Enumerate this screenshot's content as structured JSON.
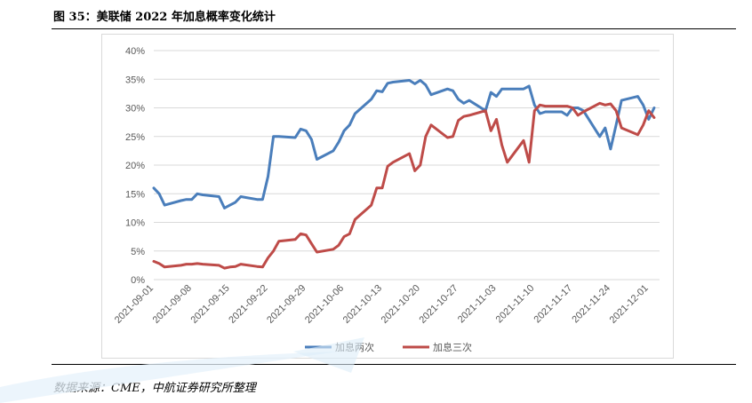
{
  "figure": {
    "title": "图 35：美联储 2022 年加息概率变化统计",
    "source": "数据来源：CME，中航证券研究所整理"
  },
  "colors": {
    "series1": "#4a7ebb",
    "series2": "#be4b48",
    "grid": "#d9d9d9",
    "axis_text": "#595959"
  },
  "chart_data": {
    "type": "line",
    "title": "",
    "xlabel": "",
    "ylabel": "",
    "ylim": [
      0,
      40
    ],
    "y_ticks": [
      "0%",
      "5%",
      "10%",
      "15%",
      "20%",
      "25%",
      "30%",
      "35%",
      "40%"
    ],
    "x_tick_labels": [
      "2021-09-01",
      "2021-09-08",
      "2021-09-15",
      "2021-09-22",
      "2021-09-29",
      "2021-10-06",
      "2021-10-13",
      "2021-10-20",
      "2021-10-27",
      "2021-11-03",
      "2021-11-10",
      "2021-11-17",
      "2021-11-24",
      "2021-12-01"
    ],
    "x_start": "2021-09-01",
    "x_end": "2021-12-03",
    "legend_position": "bottom",
    "grid": true,
    "series": [
      {
        "name": "加息两次",
        "points": [
          [
            "2021-09-01",
            16.0
          ],
          [
            "2021-09-02",
            15.0
          ],
          [
            "2021-09-03",
            13.0
          ],
          [
            "2021-09-06",
            13.8
          ],
          [
            "2021-09-07",
            14.0
          ],
          [
            "2021-09-08",
            14.0
          ],
          [
            "2021-09-09",
            15.0
          ],
          [
            "2021-09-10",
            14.8
          ],
          [
            "2021-09-13",
            14.5
          ],
          [
            "2021-09-14",
            12.5
          ],
          [
            "2021-09-15",
            13.0
          ],
          [
            "2021-09-16",
            13.5
          ],
          [
            "2021-09-17",
            14.5
          ],
          [
            "2021-09-20",
            14.0
          ],
          [
            "2021-09-21",
            14.0
          ],
          [
            "2021-09-22",
            18.0
          ],
          [
            "2021-09-23",
            25.0
          ],
          [
            "2021-09-24",
            25.0
          ],
          [
            "2021-09-27",
            24.8
          ],
          [
            "2021-09-28",
            26.3
          ],
          [
            "2021-09-29",
            26.0
          ],
          [
            "2021-09-30",
            24.5
          ],
          [
            "2021-10-01",
            21.0
          ],
          [
            "2021-10-04",
            22.5
          ],
          [
            "2021-10-05",
            24.0
          ],
          [
            "2021-10-06",
            26.0
          ],
          [
            "2021-10-07",
            27.0
          ],
          [
            "2021-10-08",
            29.0
          ],
          [
            "2021-10-11",
            31.5
          ],
          [
            "2021-10-12",
            33.0
          ],
          [
            "2021-10-13",
            32.8
          ],
          [
            "2021-10-14",
            34.3
          ],
          [
            "2021-10-15",
            34.5
          ],
          [
            "2021-10-18",
            34.8
          ],
          [
            "2021-10-19",
            34.2
          ],
          [
            "2021-10-20",
            34.8
          ],
          [
            "2021-10-21",
            34.0
          ],
          [
            "2021-10-22",
            32.3
          ],
          [
            "2021-10-25",
            33.3
          ],
          [
            "2021-10-26",
            33.0
          ],
          [
            "2021-10-27",
            31.5
          ],
          [
            "2021-10-28",
            30.8
          ],
          [
            "2021-10-29",
            31.3
          ],
          [
            "2021-11-01",
            29.5
          ],
          [
            "2021-11-02",
            32.7
          ],
          [
            "2021-11-03",
            32.0
          ],
          [
            "2021-11-04",
            33.3
          ],
          [
            "2021-11-05",
            33.3
          ],
          [
            "2021-11-08",
            33.3
          ],
          [
            "2021-11-09",
            33.8
          ],
          [
            "2021-11-10",
            30.5
          ],
          [
            "2021-11-11",
            29.0
          ],
          [
            "2021-11-12",
            29.3
          ],
          [
            "2021-11-15",
            29.3
          ],
          [
            "2021-11-16",
            28.7
          ],
          [
            "2021-11-17",
            30.0
          ],
          [
            "2021-11-18",
            30.0
          ],
          [
            "2021-11-19",
            29.5
          ],
          [
            "2021-11-22",
            25.0
          ],
          [
            "2021-11-23",
            26.5
          ],
          [
            "2021-11-24",
            22.8
          ],
          [
            "2021-11-25",
            27.0
          ],
          [
            "2021-11-26",
            31.3
          ],
          [
            "2021-11-29",
            32.0
          ],
          [
            "2021-11-30",
            30.5
          ],
          [
            "2021-12-01",
            28.0
          ],
          [
            "2021-12-02",
            30.0
          ]
        ]
      },
      {
        "name": "加息三次",
        "points": [
          [
            "2021-09-01",
            3.2
          ],
          [
            "2021-09-02",
            2.8
          ],
          [
            "2021-09-03",
            2.2
          ],
          [
            "2021-09-06",
            2.5
          ],
          [
            "2021-09-07",
            2.7
          ],
          [
            "2021-09-08",
            2.7
          ],
          [
            "2021-09-09",
            2.8
          ],
          [
            "2021-09-10",
            2.7
          ],
          [
            "2021-09-13",
            2.5
          ],
          [
            "2021-09-14",
            2.0
          ],
          [
            "2021-09-15",
            2.2
          ],
          [
            "2021-09-16",
            2.3
          ],
          [
            "2021-09-17",
            2.7
          ],
          [
            "2021-09-20",
            2.3
          ],
          [
            "2021-09-21",
            2.2
          ],
          [
            "2021-09-22",
            3.8
          ],
          [
            "2021-09-23",
            5.0
          ],
          [
            "2021-09-24",
            6.7
          ],
          [
            "2021-09-27",
            7.0
          ],
          [
            "2021-09-28",
            8.0
          ],
          [
            "2021-09-29",
            7.8
          ],
          [
            "2021-09-30",
            6.3
          ],
          [
            "2021-10-01",
            4.8
          ],
          [
            "2021-10-04",
            5.3
          ],
          [
            "2021-10-05",
            6.0
          ],
          [
            "2021-10-06",
            7.5
          ],
          [
            "2021-10-07",
            8.0
          ],
          [
            "2021-10-08",
            10.5
          ],
          [
            "2021-10-11",
            13.0
          ],
          [
            "2021-10-12",
            16.0
          ],
          [
            "2021-10-13",
            16.0
          ],
          [
            "2021-10-14",
            19.8
          ],
          [
            "2021-10-15",
            20.5
          ],
          [
            "2021-10-18",
            22.0
          ],
          [
            "2021-10-19",
            19.0
          ],
          [
            "2021-10-20",
            20.0
          ],
          [
            "2021-10-21",
            25.0
          ],
          [
            "2021-10-22",
            27.0
          ],
          [
            "2021-10-25",
            24.8
          ],
          [
            "2021-10-26",
            25.0
          ],
          [
            "2021-10-27",
            27.8
          ],
          [
            "2021-10-28",
            28.5
          ],
          [
            "2021-10-29",
            28.7
          ],
          [
            "2021-11-01",
            29.5
          ],
          [
            "2021-11-02",
            26.0
          ],
          [
            "2021-11-03",
            28.0
          ],
          [
            "2021-11-04",
            23.5
          ],
          [
            "2021-11-05",
            20.5
          ],
          [
            "2021-11-08",
            24.3
          ],
          [
            "2021-11-09",
            20.5
          ],
          [
            "2021-11-10",
            29.5
          ],
          [
            "2021-11-11",
            30.5
          ],
          [
            "2021-11-12",
            30.3
          ],
          [
            "2021-11-15",
            30.3
          ],
          [
            "2021-11-16",
            30.3
          ],
          [
            "2021-11-17",
            30.0
          ],
          [
            "2021-11-18",
            28.7
          ],
          [
            "2021-11-19",
            29.3
          ],
          [
            "2021-11-22",
            30.8
          ],
          [
            "2021-11-23",
            30.5
          ],
          [
            "2021-11-24",
            30.7
          ],
          [
            "2021-11-25",
            29.5
          ],
          [
            "2021-11-26",
            26.5
          ],
          [
            "2021-11-29",
            25.3
          ],
          [
            "2021-11-30",
            27.0
          ],
          [
            "2021-12-01",
            29.5
          ],
          [
            "2021-12-02",
            28.3
          ]
        ]
      }
    ]
  }
}
